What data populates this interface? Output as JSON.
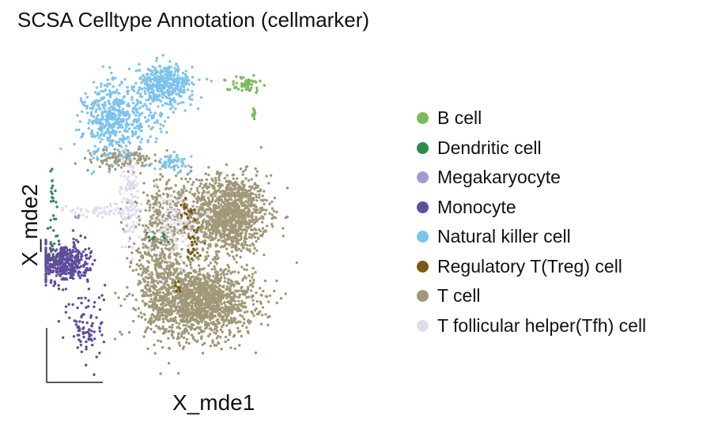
{
  "chart_data": {
    "type": "scatter",
    "title": "SCSA Celltype Annotation (cellmarker)",
    "xlabel": "X_mde1",
    "ylabel": "X_mde2",
    "legend_position": "right",
    "axis_ticks": "none",
    "grid": false,
    "xlim": [
      0,
      10
    ],
    "ylim": [
      0,
      10
    ],
    "series": [
      {
        "name": "B cell",
        "color": "#7cb95c",
        "clusters": [
          {
            "cx": 5.7,
            "cy": 9.1,
            "spread_x": 0.25,
            "spread_y": 0.12,
            "n": 55
          },
          {
            "cx": 6.0,
            "cy": 8.3,
            "spread_x": 0.05,
            "spread_y": 0.12,
            "n": 10
          }
        ]
      },
      {
        "name": "Dendritic cell",
        "color": "#2f8a4e",
        "clusters": [
          {
            "cx": 0.3,
            "cy": 5.9,
            "spread_x": 0.05,
            "spread_y": 0.4,
            "n": 12
          },
          {
            "cx": 0.35,
            "cy": 4.7,
            "spread_x": 0.07,
            "spread_y": 0.5,
            "n": 18
          },
          {
            "cx": 3.2,
            "cy": 4.4,
            "spread_x": 0.18,
            "spread_y": 0.12,
            "n": 10
          }
        ]
      },
      {
        "name": "Megakaryocyte",
        "color": "#a39bd1",
        "clusters": [
          {
            "cx": 1.0,
            "cy": 5.05,
            "spread_x": 0.05,
            "spread_y": 0.04,
            "n": 6
          }
        ]
      },
      {
        "name": "Monocyte",
        "color": "#5f4c9c",
        "clusters": [
          {
            "cx": 0.65,
            "cy": 3.6,
            "spread_x": 0.35,
            "spread_y": 0.3,
            "n": 420
          },
          {
            "cx": 1.3,
            "cy": 1.6,
            "spread_x": 0.25,
            "spread_y": 0.6,
            "n": 90
          }
        ]
      },
      {
        "name": "Natural killer cell",
        "color": "#7cc3ec",
        "clusters": [
          {
            "cx": 2.0,
            "cy": 8.0,
            "spread_x": 0.4,
            "spread_y": 0.6,
            "n": 420
          },
          {
            "cx": 3.5,
            "cy": 9.1,
            "spread_x": 0.4,
            "spread_y": 0.3,
            "n": 380
          },
          {
            "cx": 2.9,
            "cy": 8.2,
            "spread_x": 0.5,
            "spread_y": 0.5,
            "n": 110
          },
          {
            "cx": 3.7,
            "cy": 6.7,
            "spread_x": 0.25,
            "spread_y": 0.12,
            "n": 60
          }
        ]
      },
      {
        "name": "Regulatory T(Treg) cell",
        "color": "#7a5a16",
        "clusters": [
          {
            "cx": 4.1,
            "cy": 5.3,
            "spread_x": 0.08,
            "spread_y": 0.2,
            "n": 15
          },
          {
            "cx": 4.3,
            "cy": 4.2,
            "spread_x": 0.12,
            "spread_y": 0.35,
            "n": 30
          },
          {
            "cx": 3.9,
            "cy": 2.8,
            "spread_x": 0.08,
            "spread_y": 0.2,
            "n": 8
          }
        ]
      },
      {
        "name": "T cell",
        "color": "#a09878",
        "clusters": [
          {
            "cx": 5.3,
            "cy": 5.1,
            "spread_x": 0.55,
            "spread_y": 0.6,
            "n": 1200
          },
          {
            "cx": 4.5,
            "cy": 2.4,
            "spread_x": 0.75,
            "spread_y": 0.55,
            "n": 1500
          },
          {
            "cx": 3.3,
            "cy": 3.6,
            "spread_x": 0.35,
            "spread_y": 1.0,
            "n": 450
          },
          {
            "cx": 2.3,
            "cy": 6.8,
            "spread_x": 0.4,
            "spread_y": 0.15,
            "n": 140
          },
          {
            "cx": 3.7,
            "cy": 5.2,
            "spread_x": 0.5,
            "spread_y": 0.7,
            "n": 180
          }
        ]
      },
      {
        "name": "T follicular helper(Tfh) cell",
        "color": "#dedced",
        "clusters": [
          {
            "cx": 2.5,
            "cy": 5.6,
            "spread_x": 0.15,
            "spread_y": 0.8,
            "n": 120
          },
          {
            "cx": 1.7,
            "cy": 5.2,
            "spread_x": 0.45,
            "spread_y": 0.1,
            "n": 60
          },
          {
            "cx": 3.7,
            "cy": 4.8,
            "spread_x": 0.35,
            "spread_y": 0.5,
            "n": 110
          }
        ]
      }
    ]
  }
}
